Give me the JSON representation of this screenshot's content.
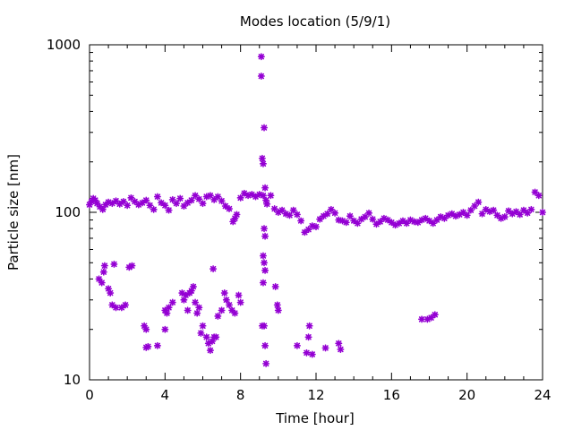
{
  "chart_data": {
    "type": "scatter",
    "title": "Modes location (5/9/1)",
    "xlabel": "Time [hour]",
    "ylabel": "Particle size [nm]",
    "xlim": [
      0,
      24
    ],
    "ylim": [
      10,
      1000
    ],
    "yscale": "log",
    "x_ticks": [
      "0",
      "4",
      "8",
      "12",
      "16",
      "20",
      "24"
    ],
    "y_ticks": [
      "10",
      "100",
      "1000"
    ],
    "grid": false,
    "legend": "none",
    "marker_color": "#9400d3",
    "series": [
      {
        "marker": "star",
        "points": [
          [
            0.0,
            111
          ],
          [
            0.1,
            116
          ],
          [
            0.2,
            121
          ],
          [
            0.3,
            118
          ],
          [
            0.4,
            113
          ],
          [
            0.55,
            108
          ],
          [
            0.7,
            104
          ],
          [
            0.85,
            111
          ],
          [
            1.0,
            115
          ],
          [
            1.2,
            113
          ],
          [
            1.4,
            117
          ],
          [
            1.6,
            112
          ],
          [
            1.8,
            116
          ],
          [
            2.0,
            110
          ],
          [
            2.2,
            122
          ],
          [
            2.4,
            116
          ],
          [
            2.6,
            111
          ],
          [
            2.8,
            114
          ],
          [
            3.0,
            118
          ],
          [
            3.2,
            110
          ],
          [
            3.4,
            104
          ],
          [
            3.6,
            124
          ],
          [
            3.8,
            114
          ],
          [
            4.0,
            110
          ],
          [
            4.2,
            103
          ],
          [
            4.4,
            119
          ],
          [
            4.6,
            113
          ],
          [
            4.8,
            121
          ],
          [
            5.0,
            109
          ],
          [
            5.2,
            114
          ],
          [
            5.4,
            118
          ],
          [
            5.6,
            126
          ],
          [
            5.8,
            120
          ],
          [
            6.0,
            113
          ],
          [
            6.2,
            124
          ],
          [
            6.4,
            126
          ],
          [
            6.6,
            119
          ],
          [
            6.8,
            124
          ],
          [
            7.0,
            117
          ],
          [
            7.2,
            109
          ],
          [
            7.4,
            105
          ],
          [
            7.6,
            88
          ],
          [
            7.7,
            92
          ],
          [
            7.8,
            97
          ],
          [
            8.0,
            122
          ],
          [
            8.2,
            130
          ],
          [
            8.4,
            126
          ],
          [
            8.6,
            128
          ],
          [
            8.8,
            124
          ],
          [
            9.0,
            128
          ],
          [
            9.2,
            126
          ],
          [
            9.4,
            112
          ],
          [
            9.6,
            126
          ],
          [
            9.8,
            105
          ],
          [
            10.0,
            100
          ],
          [
            10.2,
            103
          ],
          [
            10.4,
            98
          ],
          [
            10.6,
            96
          ],
          [
            10.8,
            103
          ],
          [
            11.0,
            97
          ],
          [
            11.2,
            89
          ],
          [
            11.4,
            76
          ],
          [
            11.6,
            79
          ],
          [
            11.8,
            83
          ],
          [
            12.0,
            82
          ],
          [
            12.2,
            91
          ],
          [
            12.4,
            95
          ],
          [
            12.6,
            98
          ],
          [
            12.8,
            104
          ],
          [
            13.0,
            99
          ],
          [
            13.2,
            90
          ],
          [
            13.4,
            89
          ],
          [
            13.6,
            87
          ],
          [
            13.8,
            95
          ],
          [
            14.0,
            89
          ],
          [
            14.2,
            86
          ],
          [
            14.4,
            91
          ],
          [
            14.6,
            94
          ],
          [
            14.8,
            99
          ],
          [
            15.0,
            91
          ],
          [
            15.2,
            85
          ],
          [
            15.4,
            88
          ],
          [
            15.6,
            92
          ],
          [
            15.8,
            90
          ],
          [
            16.0,
            87
          ],
          [
            16.2,
            84
          ],
          [
            16.4,
            86
          ],
          [
            16.6,
            89
          ],
          [
            16.8,
            86
          ],
          [
            17.0,
            90
          ],
          [
            17.2,
            88
          ],
          [
            17.4,
            87
          ],
          [
            17.6,
            90
          ],
          [
            17.8,
            92
          ],
          [
            18.0,
            89
          ],
          [
            18.2,
            86
          ],
          [
            18.4,
            90
          ],
          [
            18.6,
            94
          ],
          [
            18.8,
            92
          ],
          [
            19.0,
            96
          ],
          [
            19.2,
            98
          ],
          [
            19.4,
            95
          ],
          [
            19.6,
            97
          ],
          [
            19.8,
            100
          ],
          [
            20.0,
            96
          ],
          [
            20.2,
            103
          ],
          [
            20.4,
            109
          ],
          [
            20.6,
            115
          ],
          [
            20.8,
            98
          ],
          [
            21.0,
            104
          ],
          [
            21.2,
            101
          ],
          [
            21.4,
            103
          ],
          [
            21.6,
            96
          ],
          [
            21.8,
            92
          ],
          [
            22.0,
            94
          ],
          [
            22.2,
            102
          ],
          [
            22.4,
            98
          ],
          [
            22.6,
            101
          ],
          [
            22.8,
            97
          ],
          [
            23.0,
            103
          ],
          [
            23.2,
            99
          ],
          [
            23.4,
            104
          ],
          [
            23.6,
            132
          ],
          [
            23.8,
            126
          ],
          [
            24.0,
            100
          ],
          [
            9.1,
            850
          ],
          [
            9.1,
            650
          ],
          [
            9.25,
            320
          ],
          [
            9.15,
            210
          ],
          [
            9.2,
            195
          ],
          [
            9.3,
            140
          ],
          [
            9.35,
            118
          ],
          [
            9.25,
            80
          ],
          [
            9.3,
            72
          ],
          [
            9.2,
            55
          ],
          [
            9.25,
            50
          ],
          [
            9.3,
            45
          ],
          [
            9.2,
            38
          ],
          [
            9.15,
            21
          ],
          [
            9.25,
            21
          ],
          [
            9.3,
            16
          ],
          [
            9.35,
            12.5
          ],
          [
            9.85,
            36
          ],
          [
            9.95,
            28
          ],
          [
            10.0,
            26
          ],
          [
            0.5,
            40
          ],
          [
            0.65,
            38
          ],
          [
            0.75,
            44
          ],
          [
            0.8,
            48
          ],
          [
            1.0,
            35
          ],
          [
            1.1,
            33
          ],
          [
            1.3,
            49
          ],
          [
            1.2,
            28
          ],
          [
            1.4,
            27
          ],
          [
            1.7,
            27
          ],
          [
            1.9,
            28
          ],
          [
            2.1,
            47
          ],
          [
            2.25,
            48
          ],
          [
            2.9,
            21
          ],
          [
            3.0,
            20
          ],
          [
            3.1,
            15.8
          ],
          [
            3.0,
            15.6
          ],
          [
            3.6,
            16
          ],
          [
            4.0,
            20
          ],
          [
            4.0,
            26
          ],
          [
            4.1,
            25
          ],
          [
            4.2,
            27
          ],
          [
            4.4,
            29
          ],
          [
            4.9,
            33
          ],
          [
            5.0,
            30
          ],
          [
            5.1,
            32
          ],
          [
            5.2,
            26
          ],
          [
            5.3,
            33
          ],
          [
            5.4,
            34
          ],
          [
            5.5,
            36
          ],
          [
            5.6,
            29
          ],
          [
            5.7,
            25
          ],
          [
            5.8,
            27
          ],
          [
            5.9,
            19
          ],
          [
            6.0,
            21
          ],
          [
            6.2,
            18
          ],
          [
            6.3,
            16.5
          ],
          [
            6.4,
            15
          ],
          [
            6.5,
            17
          ],
          [
            6.55,
            46
          ],
          [
            6.6,
            18
          ],
          [
            6.7,
            18
          ],
          [
            6.8,
            24
          ],
          [
            7.0,
            26
          ],
          [
            7.15,
            33
          ],
          [
            7.25,
            30
          ],
          [
            7.4,
            28
          ],
          [
            7.55,
            26
          ],
          [
            7.7,
            25
          ],
          [
            7.9,
            32
          ],
          [
            8.0,
            29
          ],
          [
            11.0,
            16
          ],
          [
            11.5,
            14.5
          ],
          [
            11.6,
            18
          ],
          [
            11.8,
            14.2
          ],
          [
            11.65,
            21
          ],
          [
            12.5,
            15.5
          ],
          [
            13.2,
            16.5
          ],
          [
            13.3,
            15.2
          ],
          [
            17.6,
            23
          ],
          [
            17.9,
            23
          ],
          [
            18.1,
            23.5
          ],
          [
            18.3,
            24.5
          ]
        ]
      }
    ]
  }
}
